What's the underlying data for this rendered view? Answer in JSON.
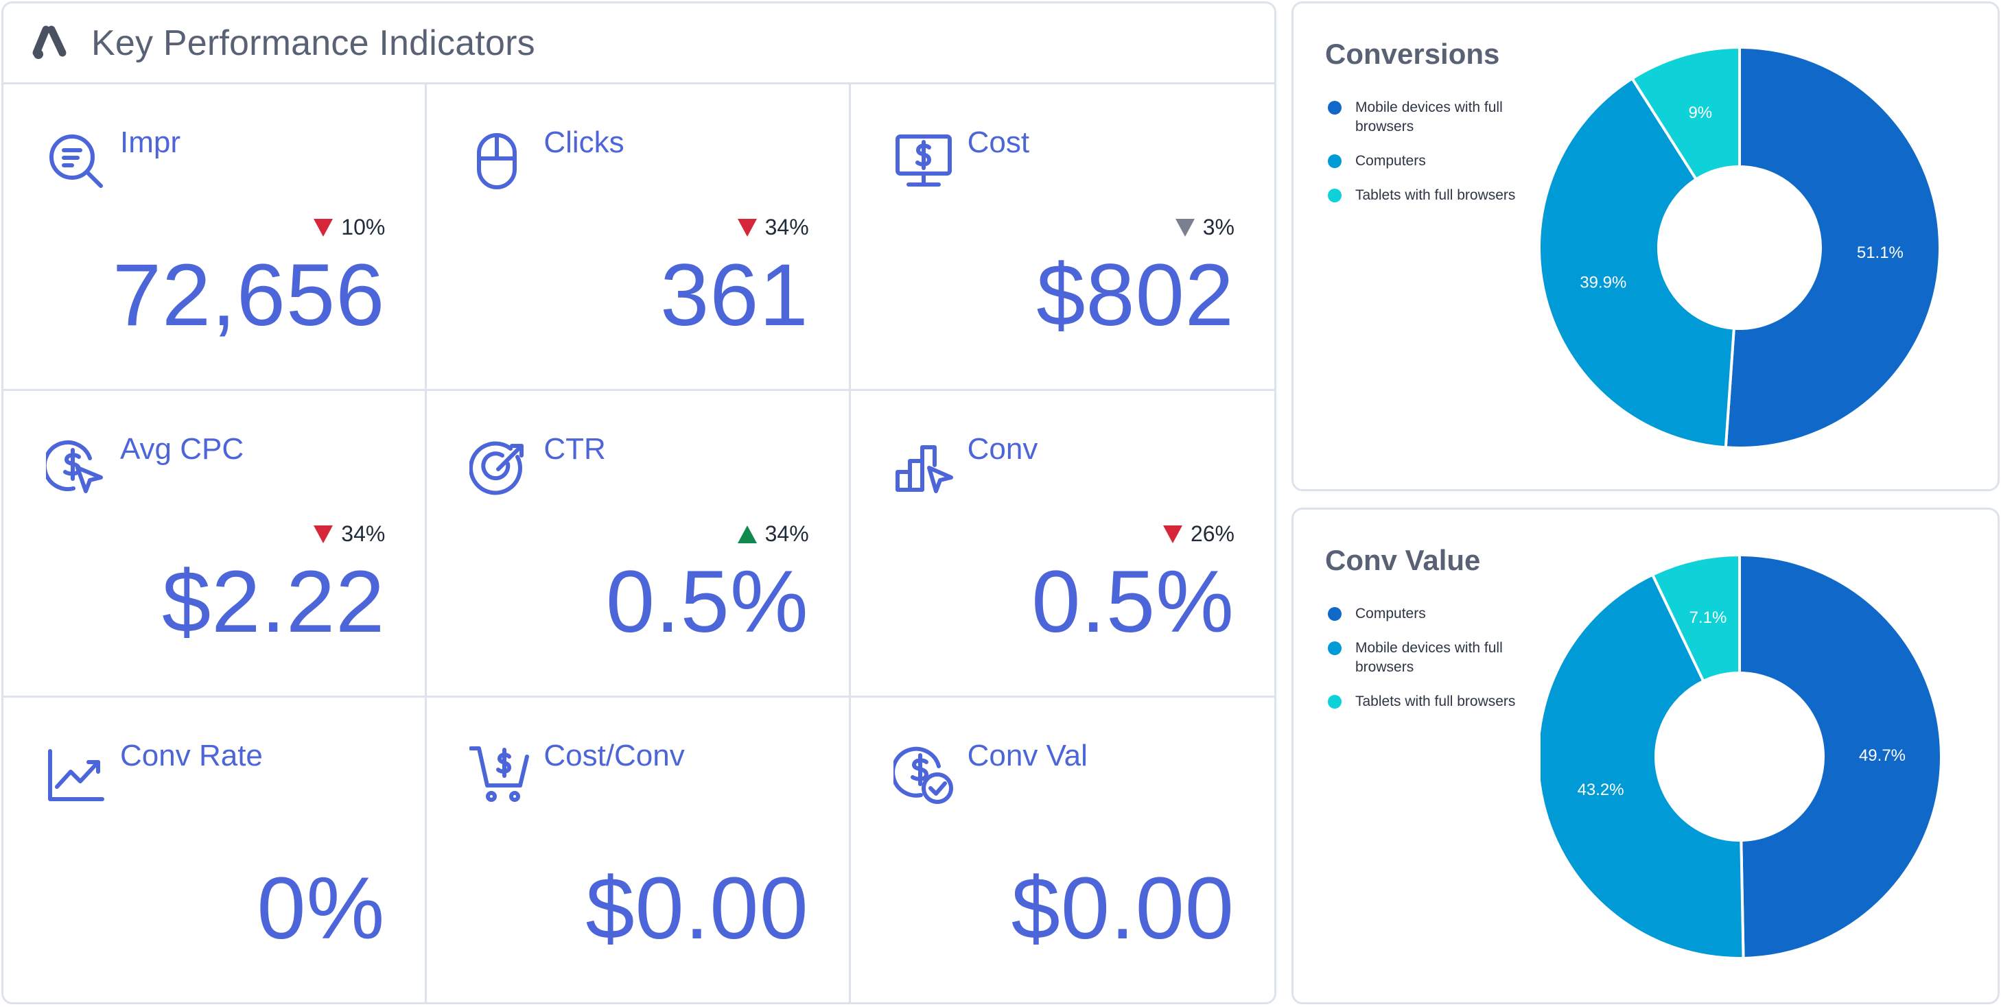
{
  "header": {
    "title": "Key Performance Indicators",
    "logo_icon": "google-ads-logo-icon"
  },
  "tiles": [
    {
      "label": "Impr",
      "value": "72,656",
      "change": "10%",
      "direction": "down",
      "tone": "negative",
      "icon": "search-analytics-icon"
    },
    {
      "label": "Clicks",
      "value": "361",
      "change": "34%",
      "direction": "down",
      "tone": "negative",
      "icon": "mouse-icon"
    },
    {
      "label": "Cost",
      "value": "$802",
      "change": "3%",
      "direction": "down",
      "tone": "neutral",
      "icon": "monitor-dollar-icon"
    },
    {
      "label": "Avg CPC",
      "value": "$2.22",
      "change": "34%",
      "direction": "down",
      "tone": "negative",
      "icon": "dollar-cursor-icon"
    },
    {
      "label": "CTR",
      "value": "0.5%",
      "change": "34%",
      "direction": "up",
      "tone": "positive",
      "icon": "target-icon"
    },
    {
      "label": "Conv",
      "value": "0.5%",
      "change": "26%",
      "direction": "down",
      "tone": "negative",
      "icon": "bars-cursor-icon"
    },
    {
      "label": "Conv Rate",
      "value": "0%",
      "change": "",
      "direction": "",
      "tone": "",
      "icon": "trend-chart-icon"
    },
    {
      "label": "Cost/Conv",
      "value": "$0.00",
      "change": "",
      "direction": "",
      "tone": "",
      "icon": "cart-dollar-icon"
    },
    {
      "label": "Conv Val",
      "value": "$0.00",
      "change": "",
      "direction": "",
      "tone": "",
      "icon": "dollar-check-icon"
    }
  ],
  "colors": {
    "accent": "#4c65d9",
    "negative": "#d6273a",
    "positive": "#0f8a4f",
    "neutral": "#7a8090",
    "slice_dark_blue": "#1069c8",
    "slice_blue": "#009ad6",
    "slice_cyan": "#0fd1d8"
  },
  "chart_data": [
    {
      "type": "pie",
      "title": "Conversions",
      "legend_position": "left",
      "categories": [
        "Mobile devices with full browsers",
        "Computers",
        "Tablets with full browsers"
      ],
      "values": [
        51.1,
        39.9,
        9
      ],
      "labels": [
        "51.1%",
        "39.9%",
        "9%"
      ],
      "colors": [
        "#1069c8",
        "#009ad6",
        "#0fd1d8"
      ]
    },
    {
      "type": "pie",
      "title": "Conv Value",
      "legend_position": "left",
      "categories": [
        "Computers",
        "Mobile devices with full browsers",
        "Tablets with full browsers"
      ],
      "values": [
        49.7,
        43.2,
        7.1
      ],
      "labels": [
        "49.7%",
        "43.2%",
        "7.1%"
      ],
      "colors": [
        "#1069c8",
        "#009ad6",
        "#0fd1d8"
      ]
    }
  ]
}
